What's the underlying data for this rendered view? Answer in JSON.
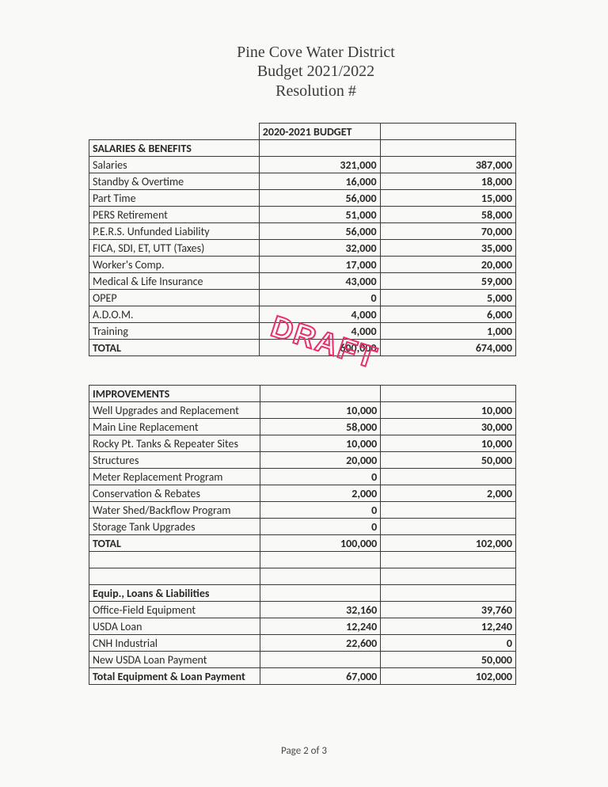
{
  "title": {
    "line1": "Pine Cove Water District",
    "line2": "Budget 2021/2022",
    "line3": "Resolution #"
  },
  "stamp": "DRAFT",
  "footer": "Page 2 of 3",
  "table1": {
    "header_col_a": "2020-2021 BUDGET",
    "section": "SALARIES & BENEFITS",
    "rows": [
      {
        "label": "Salaries",
        "a": "321,000",
        "b": "387,000"
      },
      {
        "label": "Standby & Overtime",
        "a": "16,000",
        "b": "18,000"
      },
      {
        "label": "Part Time",
        "a": "56,000",
        "b": "15,000"
      },
      {
        "label": "PERS Retirement",
        "a": "51,000",
        "b": "58,000"
      },
      {
        "label": "P.E.R.S.  Unfunded Liability",
        "a": "56,000",
        "b": "70,000"
      },
      {
        "label": "FICA, SDI, ET, UTT (Taxes)",
        "a": "32,000",
        "b": "35,000"
      },
      {
        "label": "Worker's Comp.",
        "a": "17,000",
        "b": "20,000"
      },
      {
        "label": "Medical & Life Insurance",
        "a": "43,000",
        "b": "59,000"
      },
      {
        "label": "OPEP",
        "a": "0",
        "b": "5,000"
      },
      {
        "label": "A.D.O.M.",
        "a": "4,000",
        "b": "6,000"
      },
      {
        "label": "Training",
        "a": "4,000",
        "b": "1,000"
      }
    ],
    "total": {
      "label": "TOTAL",
      "a": "600,000",
      "b": "674,000"
    }
  },
  "table2": {
    "section": "IMPROVEMENTS",
    "rows": [
      {
        "label": "Well Upgrades and Replacement",
        "a": "10,000",
        "b": "10,000"
      },
      {
        "label": "Main Line Replacement",
        "a": "58,000",
        "b": "30,000"
      },
      {
        "label": "Rocky Pt. Tanks & Repeater Sites",
        "a": "10,000",
        "b": "10,000"
      },
      {
        "label": "Structures",
        "a": "20,000",
        "b": "50,000"
      },
      {
        "label": "Meter Replacement Program",
        "a": "0",
        "b": ""
      },
      {
        "label": "Conservation & Rebates",
        "a": "2,000",
        "b": "2,000"
      },
      {
        "label": "Water Shed/Backflow Program",
        "a": "0",
        "b": ""
      },
      {
        "label": "Storage Tank Upgrades",
        "a": "0",
        "b": ""
      }
    ],
    "total": {
      "label": "TOTAL",
      "a": "100,000",
      "b": "102,000"
    },
    "section2": "Equip., Loans & Liabilities",
    "rows2": [
      {
        "label": "Office-Field Equipment",
        "a": "32,160",
        "b": "39,760"
      },
      {
        "label": "USDA Loan",
        "a": "12,240",
        "b": "12,240"
      },
      {
        "label": "CNH Industrial",
        "a": "22,600",
        "b": "0"
      },
      {
        "label": "New USDA Loan Payment",
        "a": "",
        "b": "50,000"
      }
    ],
    "total2": {
      "label": "Total Equipment & Loan Payment",
      "a": "67,000",
      "b": "102,000"
    }
  }
}
